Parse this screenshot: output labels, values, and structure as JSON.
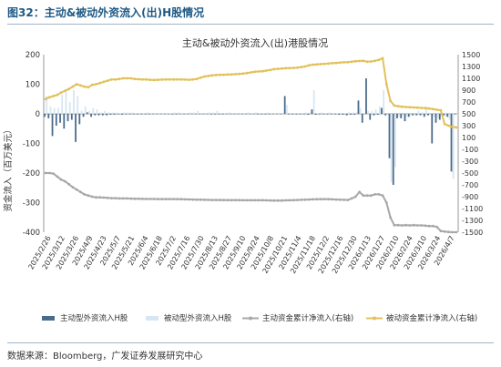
{
  "figure_title": "图32：主动&被动外资流入(出)H股情况",
  "source_note": "数据来源：Bloomberg，广发证券发展研究中心",
  "colors": {
    "active_bar": "#4a6b8c",
    "passive_bar": "#d7e6f2",
    "active_cum": "#a8a8a8",
    "passive_cum": "#e2c15a",
    "axis": "#999999",
    "text": "#333333"
  },
  "chart_data": {
    "type": "bar",
    "title": "主动&被动外资流入(出)港股情况",
    "ylabel": "资金流入（百万美元）",
    "ylim": [
      -400,
      200
    ],
    "y_ticks": [
      -400,
      -300,
      -200,
      -100,
      0,
      100,
      200
    ],
    "y2lim": [
      -1500,
      1500
    ],
    "y2_ticks": [
      -1500,
      -1300,
      -1100,
      -900,
      -700,
      -500,
      -300,
      -100,
      100,
      300,
      500,
      700,
      900,
      1100,
      1300,
      1500
    ],
    "x_tick_labels": [
      "2025/2/26",
      "2025/3/12",
      "2025/3/26",
      "2025/4/9",
      "2025/4/23",
      "2025/5/7",
      "2025/5/21",
      "2025/6/4",
      "2025/6/18",
      "2025/7/2",
      "2025/7/16",
      "2025/7/30",
      "2025/8/13",
      "2025/8/27",
      "2025/9/10",
      "2025/9/24",
      "2025/10/8",
      "2025/10/21",
      "2025/11/4",
      "2025/11/18",
      "2025/12/2",
      "2025/12/16",
      "2025/12/30",
      "2026/1/13",
      "2026/1/27",
      "2026/2/10",
      "2026/2/24",
      "2026/3/10",
      "2026/3/24",
      "2026/4/7"
    ],
    "series": [
      {
        "name": "主动型外资流入H股",
        "axis": "left",
        "kind": "bar",
        "values": [
          -10,
          -15,
          -75,
          -40,
          -30,
          -50,
          -25,
          -20,
          -95,
          -35,
          -10,
          5,
          -10,
          -5,
          -5,
          -5,
          -5,
          -3,
          -3,
          -2,
          -3,
          -2,
          -2,
          -2,
          -2,
          -2,
          -2,
          -2,
          -1,
          -1,
          -1,
          -1,
          -1,
          -2,
          -2,
          -1,
          -1,
          -1,
          -1,
          -1,
          -1,
          -1,
          -1,
          -2,
          -2,
          -2,
          -2,
          -1,
          -1,
          -1,
          -1,
          -1,
          -1,
          -1,
          -1,
          -2,
          -2,
          -2,
          -2,
          -1,
          -1,
          -1,
          60,
          -2,
          -2,
          -2,
          -2,
          -2,
          -3,
          15,
          -3,
          -2,
          -2,
          -2,
          -2,
          -2,
          -3,
          -3,
          -5,
          -3,
          -3,
          45,
          -30,
          120,
          -20,
          -5,
          -3,
          20,
          -5,
          -150,
          -240,
          -15,
          -15,
          -25,
          -10,
          -5,
          -5,
          -5,
          -10,
          -5,
          -100,
          -30,
          -20,
          -5,
          -10,
          -195,
          -2
        ],
        "visual_note": "approx values read from chart"
      },
      {
        "name": "被动型外资流入H股",
        "axis": "left",
        "kind": "bar",
        "values": [
          60,
          25,
          20,
          20,
          65,
          75,
          40,
          80,
          60,
          10,
          25,
          10,
          20,
          15,
          5,
          10,
          5,
          5,
          5,
          3,
          5,
          5,
          5,
          3,
          3,
          3,
          5,
          3,
          3,
          3,
          3,
          3,
          3,
          5,
          5,
          3,
          3,
          5,
          5,
          10,
          3,
          3,
          5,
          5,
          10,
          3,
          3,
          5,
          3,
          3,
          3,
          3,
          5,
          3,
          5,
          3,
          3,
          5,
          3,
          3,
          3,
          3,
          30,
          3,
          3,
          3,
          3,
          5,
          5,
          80,
          3,
          5,
          3,
          5,
          3,
          3,
          3,
          3,
          5,
          5,
          5,
          20,
          3,
          10,
          10,
          15,
          25,
          80,
          -5,
          -230,
          -180,
          -10,
          -5,
          -10,
          -5,
          -5,
          10,
          5,
          25,
          -5,
          -10,
          -15,
          -5,
          -10,
          -20,
          -220,
          -5
        ]
      },
      {
        "name": "主动资金累计净流入(右轴)",
        "axis": "right",
        "kind": "line",
        "values": [
          -500,
          -500,
          -510,
          -560,
          -610,
          -640,
          -690,
          -740,
          -780,
          -820,
          -860,
          -880,
          -900,
          -910,
          -910,
          -915,
          -920,
          -925,
          -925,
          -930,
          -930,
          -930,
          -932,
          -935,
          -936,
          -937,
          -938,
          -938,
          -939,
          -940,
          -940,
          -940,
          -940,
          -940,
          -940,
          -942,
          -944,
          -946,
          -948,
          -950,
          -950,
          -952,
          -954,
          -955,
          -955,
          -956,
          -957,
          -958,
          -958,
          -958,
          -959,
          -960,
          -960,
          -960,
          -960,
          -960,
          -960,
          -962,
          -963,
          -964,
          -965,
          -965,
          -962,
          -960,
          -958,
          -955,
          -952,
          -950,
          -948,
          -945,
          -943,
          -942,
          -940,
          -942,
          -945,
          -948,
          -950,
          -952,
          -955,
          -930,
          -900,
          -820,
          -880,
          -880,
          -880,
          -860,
          -860,
          -880,
          -1000,
          -1250,
          -1380,
          -1380,
          -1385,
          -1380,
          -1385,
          -1380,
          -1385,
          -1385,
          -1390,
          -1395,
          -1395,
          -1410,
          -1480,
          -1490,
          -1495,
          -1500,
          -1500
        ]
      },
      {
        "name": "被动资金累计净流入(右轴)",
        "axis": "right",
        "kind": "line",
        "values": [
          750,
          780,
          800,
          820,
          860,
          890,
          920,
          960,
          1000,
          980,
          960,
          950,
          990,
          1000,
          1020,
          1040,
          1060,
          1080,
          1080,
          1090,
          1100,
          1100,
          1100,
          1090,
          1085,
          1080,
          1080,
          1075,
          1070,
          1075,
          1078,
          1080,
          1080,
          1080,
          1082,
          1080,
          1078,
          1075,
          1080,
          1090,
          1110,
          1130,
          1140,
          1150,
          1155,
          1160,
          1160,
          1165,
          1165,
          1170,
          1175,
          1180,
          1190,
          1200,
          1210,
          1215,
          1220,
          1230,
          1240,
          1255,
          1260,
          1265,
          1270,
          1272,
          1275,
          1280,
          1290,
          1300,
          1320,
          1330,
          1335,
          1340,
          1345,
          1350,
          1355,
          1360,
          1365,
          1370,
          1372,
          1380,
          1390,
          1392,
          1395,
          1380,
          1385,
          1395,
          1410,
          1440,
          1000,
          720,
          640,
          630,
          620,
          615,
          610,
          608,
          605,
          600,
          595,
          590,
          580,
          570,
          560,
          330,
          300,
          280,
          270
        ]
      }
    ],
    "legend_position": "bottom",
    "grid": false
  }
}
